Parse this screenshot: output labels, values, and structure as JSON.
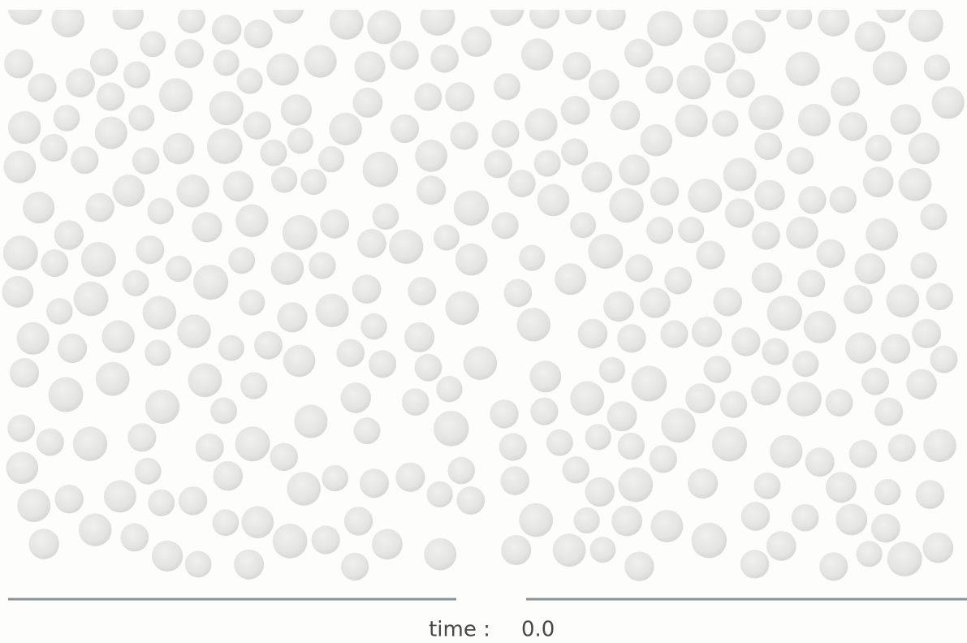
{
  "status": {
    "label": "time :",
    "value": "0.0"
  }
}
